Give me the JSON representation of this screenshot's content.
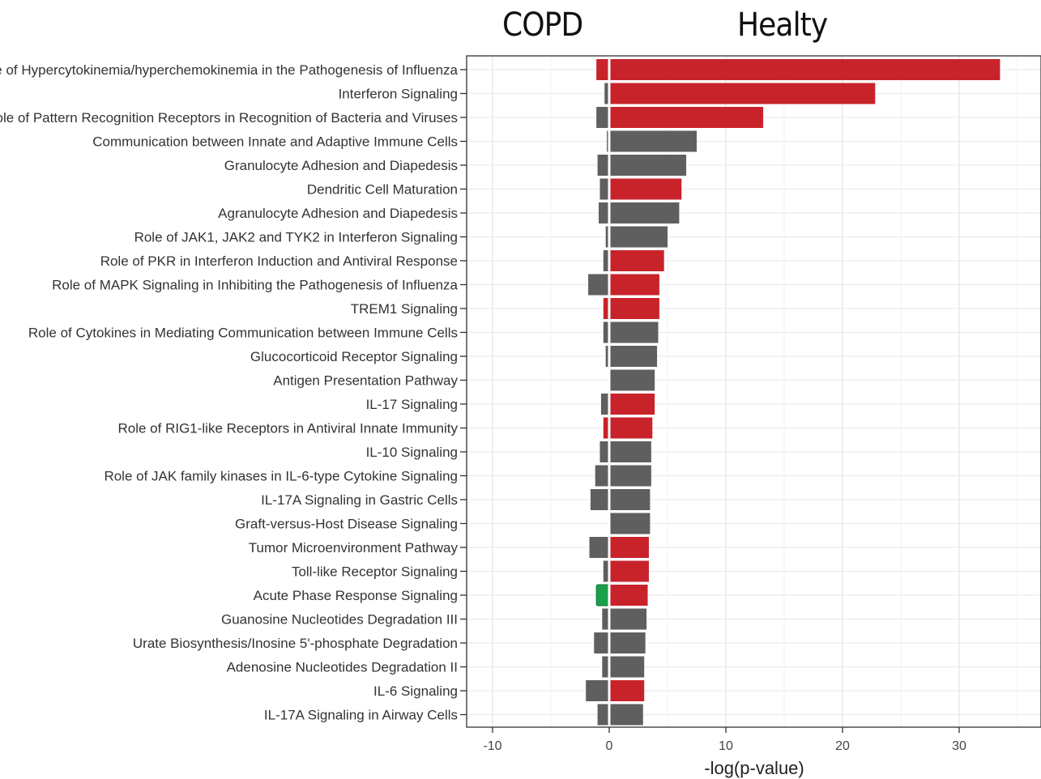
{
  "headers": {
    "left": "COPD",
    "right": "Healty"
  },
  "chart_data": {
    "type": "bar",
    "orientation": "horizontal",
    "xlabel": "-log(p-value)",
    "xlim": [
      -10.5,
      36
    ],
    "xticks": [
      -10,
      0,
      10,
      20,
      30
    ],
    "grid": true,
    "colors": {
      "up": "#c8232b",
      "neutral": "#5f5f5f",
      "down": "#1aa04a"
    },
    "categories": [
      "Role of Hypercytokinemia/hyperchemokinemia in the Pathogenesis of Influenza",
      "Interferon Signaling",
      "Role of Pattern Recognition Receptors in Recognition of Bacteria and Viruses",
      "Communication between Innate and Adaptive Immune Cells",
      "Granulocyte Adhesion and Diapedesis",
      "Dendritic Cell Maturation",
      "Agranulocyte Adhesion and Diapedesis",
      "Role of JAK1, JAK2 and TYK2 in Interferon Signaling",
      "Role of PKR in Interferon Induction and Antiviral Response",
      "Role of MAPK Signaling in Inhibiting the Pathogenesis of Influenza",
      "TREM1 Signaling",
      "Role of Cytokines in Mediating Communication between Immune Cells",
      "Glucocorticoid Receptor Signaling",
      "Antigen Presentation Pathway",
      "IL-17 Signaling",
      "Role of RIG1-like Receptors in Antiviral Innate Immunity",
      "IL-10 Signaling",
      "Role of JAK family kinases in IL-6-type Cytokine Signaling",
      "IL-17A Signaling in Gastric Cells",
      "Graft-versus-Host Disease Signaling",
      "Tumor Microenvironment Pathway",
      "Toll-like Receptor Signaling",
      "Acute Phase Response Signaling",
      "Guanosine Nucleotides Degradation III",
      "Urate Biosynthesis/Inosine 5'-phosphate Degradation",
      "Adenosine Nucleotides Degradation II",
      "IL-6 Signaling",
      "IL-17A Signaling in Airway Cells"
    ],
    "series": [
      {
        "values": [
          -1.1,
          -0.4,
          -1.1,
          -0.2,
          -1.0,
          -0.8,
          -0.9,
          -0.3,
          -0.5,
          -1.8,
          -0.5,
          -0.5,
          -0.3,
          -0.1,
          -0.7,
          -0.5,
          -0.8,
          -1.2,
          -1.6,
          -0.1,
          -1.7,
          -0.5,
          -1.1,
          -0.6,
          -1.3,
          -0.6,
          -2.0,
          -1.0
        ],
        "status": [
          "up",
          "neutral",
          "neutral",
          "neutral",
          "neutral",
          "neutral",
          "neutral",
          "neutral",
          "neutral",
          "neutral",
          "up",
          "neutral",
          "neutral",
          "neutral",
          "neutral",
          "up",
          "neutral",
          "neutral",
          "neutral",
          "neutral",
          "neutral",
          "neutral",
          "down",
          "neutral",
          "neutral",
          "neutral",
          "neutral",
          "neutral"
        ]
      },
      {
        "values": [
          33.5,
          22.8,
          13.2,
          7.5,
          6.6,
          6.2,
          6.0,
          5.0,
          4.7,
          4.3,
          4.3,
          4.2,
          4.1,
          3.9,
          3.9,
          3.7,
          3.6,
          3.6,
          3.5,
          3.5,
          3.4,
          3.4,
          3.3,
          3.2,
          3.1,
          3.0,
          3.0,
          2.9
        ],
        "status": [
          "up",
          "up",
          "up",
          "neutral",
          "neutral",
          "up",
          "neutral",
          "neutral",
          "up",
          "up",
          "up",
          "neutral",
          "neutral",
          "neutral",
          "up",
          "up",
          "neutral",
          "neutral",
          "neutral",
          "neutral",
          "up",
          "up",
          "up",
          "neutral",
          "neutral",
          "neutral",
          "up",
          "neutral"
        ]
      }
    ]
  }
}
